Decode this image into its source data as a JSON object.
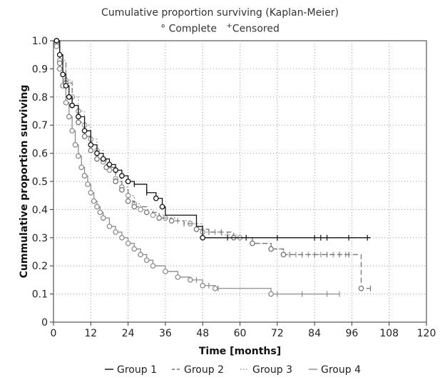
{
  "chart_data": {
    "type": "line",
    "title": "Cumulative proportion surviving (Kaplan-Meier)",
    "subtitle": "° Complete   ⁺Censored",
    "subtitle_parts": {
      "complete_marker": "°",
      "complete_label": "Complete",
      "censored_marker": "+",
      "censored_label": "Censored"
    },
    "xlabel": "Time [months]",
    "ylabel": "Cummulative proportion surviving",
    "xlim": [
      0,
      120
    ],
    "ylim": [
      0,
      1.0
    ],
    "xticks": [
      0,
      12,
      24,
      36,
      48,
      60,
      72,
      84,
      96,
      108,
      120
    ],
    "yticks": [
      0,
      0.1,
      0.2,
      0.3,
      0.4,
      0.5,
      0.6,
      0.7,
      0.8,
      0.9,
      1.0
    ],
    "ytick_labels": [
      "0",
      "0.1",
      "0.2",
      "0.3",
      "0.4",
      "0.5",
      "0.6",
      "0.7",
      "0.8",
      "0.9",
      "1.0"
    ],
    "grid": true,
    "legend_position": "bottom",
    "series": [
      {
        "name": "Group 1",
        "color": "#111111",
        "dash": "solid",
        "steps": [
          [
            1,
            1.0
          ],
          [
            2,
            0.95
          ],
          [
            3,
            0.88
          ],
          [
            4,
            0.84
          ],
          [
            5,
            0.8
          ],
          [
            6,
            0.77
          ],
          [
            8,
            0.73
          ],
          [
            10,
            0.68
          ],
          [
            12,
            0.63
          ],
          [
            14,
            0.6
          ],
          [
            16,
            0.58
          ],
          [
            18,
            0.56
          ],
          [
            20,
            0.54
          ],
          [
            22,
            0.52
          ],
          [
            24,
            0.5
          ],
          [
            26,
            0.49
          ],
          [
            30,
            0.46
          ],
          [
            33,
            0.44
          ],
          [
            35,
            0.41
          ],
          [
            36,
            0.38
          ],
          [
            46,
            0.34
          ],
          [
            48,
            0.3
          ],
          [
            102,
            0.3
          ]
        ],
        "complete_times": [
          1,
          2,
          3,
          4,
          5,
          6,
          8,
          10,
          12,
          14,
          16,
          18,
          20,
          22,
          24,
          33,
          35,
          48
        ],
        "censored_times": [
          26,
          30,
          56,
          62,
          72,
          84,
          86,
          88,
          95,
          101
        ]
      },
      {
        "name": "Group 2",
        "color": "#777777",
        "dash": "dashed",
        "steps": [
          [
            1,
            1.0
          ],
          [
            2,
            0.92
          ],
          [
            4,
            0.85
          ],
          [
            6,
            0.77
          ],
          [
            8,
            0.71
          ],
          [
            10,
            0.66
          ],
          [
            12,
            0.61
          ],
          [
            14,
            0.58
          ],
          [
            17,
            0.55
          ],
          [
            20,
            0.5
          ],
          [
            22,
            0.47
          ],
          [
            24,
            0.43
          ],
          [
            26,
            0.41
          ],
          [
            30,
            0.39
          ],
          [
            34,
            0.37
          ],
          [
            38,
            0.36
          ],
          [
            42,
            0.35
          ],
          [
            46,
            0.33
          ],
          [
            50,
            0.32
          ],
          [
            58,
            0.3
          ],
          [
            64,
            0.28
          ],
          [
            70,
            0.26
          ],
          [
            74,
            0.24
          ],
          [
            98,
            0.24
          ],
          [
            99,
            0.12
          ],
          [
            102,
            0.12
          ]
        ],
        "complete_times": [
          1,
          2,
          4,
          6,
          8,
          10,
          12,
          14,
          17,
          20,
          22,
          24,
          26,
          30,
          34,
          38,
          46,
          58,
          64,
          70,
          74,
          99
        ],
        "censored_times": [
          42,
          50,
          54,
          76,
          80,
          84,
          88,
          92,
          95,
          102
        ]
      },
      {
        "name": "Group 3",
        "color": "#9a9a9a",
        "dash": "dotted",
        "steps": [
          [
            1,
            0.98
          ],
          [
            2,
            0.93
          ],
          [
            4,
            0.86
          ],
          [
            6,
            0.8
          ],
          [
            8,
            0.75
          ],
          [
            10,
            0.7
          ],
          [
            12,
            0.65
          ],
          [
            14,
            0.61
          ],
          [
            16,
            0.57
          ],
          [
            18,
            0.54
          ],
          [
            20,
            0.51
          ],
          [
            22,
            0.48
          ],
          [
            24,
            0.45
          ],
          [
            26,
            0.42
          ],
          [
            28,
            0.4
          ],
          [
            32,
            0.38
          ],
          [
            36,
            0.37
          ],
          [
            40,
            0.36
          ],
          [
            44,
            0.35
          ],
          [
            48,
            0.32
          ],
          [
            54,
            0.31
          ],
          [
            60,
            0.3
          ],
          [
            64,
            0.28
          ],
          [
            70,
            0.26
          ],
          [
            74,
            0.24
          ],
          [
            96,
            0.24
          ]
        ],
        "complete_times": [
          1,
          2,
          4,
          6,
          8,
          10,
          12,
          14,
          16,
          18,
          20,
          22,
          24,
          26,
          28,
          32,
          36,
          44,
          48,
          60,
          64,
          70,
          74
        ],
        "censored_times": [
          40,
          52,
          56,
          78,
          82,
          86,
          90,
          94
        ]
      },
      {
        "name": "Group 4",
        "color": "#8c8c8c",
        "dash": "solid",
        "steps": [
          [
            1,
            0.99
          ],
          [
            2,
            0.9
          ],
          [
            3,
            0.84
          ],
          [
            4,
            0.78
          ],
          [
            5,
            0.73
          ],
          [
            6,
            0.68
          ],
          [
            7,
            0.63
          ],
          [
            8,
            0.59
          ],
          [
            9,
            0.55
          ],
          [
            10,
            0.52
          ],
          [
            11,
            0.49
          ],
          [
            12,
            0.46
          ],
          [
            13,
            0.43
          ],
          [
            14,
            0.41
          ],
          [
            15,
            0.39
          ],
          [
            16,
            0.37
          ],
          [
            18,
            0.34
          ],
          [
            20,
            0.32
          ],
          [
            22,
            0.3
          ],
          [
            24,
            0.28
          ],
          [
            26,
            0.26
          ],
          [
            28,
            0.24
          ],
          [
            30,
            0.22
          ],
          [
            32,
            0.2
          ],
          [
            36,
            0.18
          ],
          [
            40,
            0.16
          ],
          [
            44,
            0.15
          ],
          [
            48,
            0.13
          ],
          [
            52,
            0.12
          ],
          [
            70,
            0.1
          ],
          [
            92,
            0.1
          ]
        ],
        "complete_times": [
          1,
          2,
          3,
          4,
          5,
          6,
          7,
          8,
          9,
          10,
          11,
          12,
          13,
          14,
          15,
          16,
          18,
          20,
          22,
          24,
          26,
          28,
          30,
          32,
          36,
          40,
          44,
          48,
          52,
          70
        ],
        "censored_times": [
          46,
          50,
          53,
          72,
          80,
          88,
          92
        ]
      }
    ]
  }
}
